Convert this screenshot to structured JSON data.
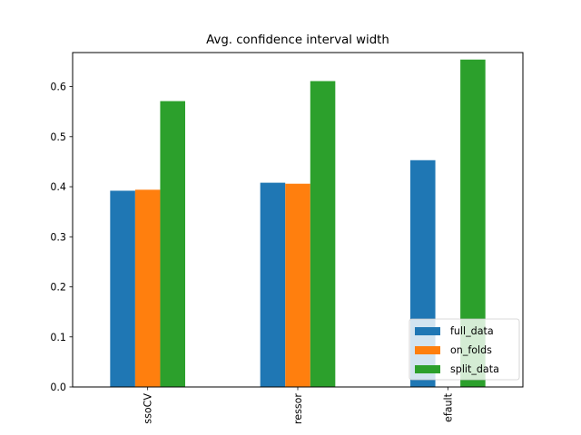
{
  "chart_data": {
    "type": "bar",
    "title": "Avg. confidence interval width",
    "xlabel": "",
    "ylabel": "",
    "categories": [
      "ssoCV",
      "ressor",
      "efault"
    ],
    "series": [
      {
        "name": "full_data",
        "color": "#1f77b4",
        "values": [
          0.392,
          0.408,
          0.453
        ]
      },
      {
        "name": "on_folds",
        "color": "#ff7f0e",
        "values": [
          0.394,
          0.406,
          null
        ]
      },
      {
        "name": "split_data",
        "color": "#2ca02c",
        "values": [
          0.571,
          0.611,
          0.654
        ]
      }
    ],
    "ylim": [
      0,
      0.668
    ],
    "yticks": [
      "0.0",
      "0.1",
      "0.2",
      "0.3",
      "0.4",
      "0.5",
      "0.6"
    ],
    "ytick_values": [
      0,
      0.1,
      0.2,
      0.3,
      0.4,
      0.5,
      0.6
    ],
    "grid": false,
    "legend_position": "lower-right"
  }
}
